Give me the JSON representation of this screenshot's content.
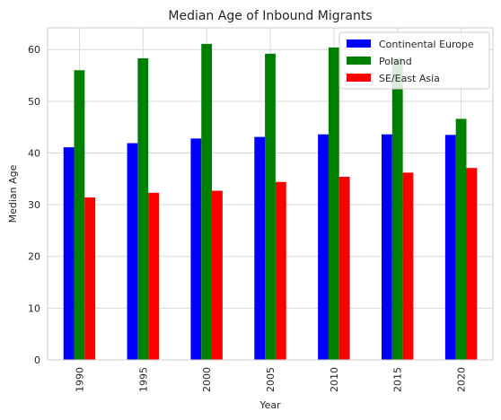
{
  "chart_data": {
    "type": "bar",
    "title": "Median Age of Inbound Migrants",
    "xlabel": "Year",
    "ylabel": "Median Age",
    "categories": [
      "1990",
      "1995",
      "2000",
      "2005",
      "2010",
      "2015",
      "2020"
    ],
    "series": [
      {
        "name": "Continental Europe",
        "color": "#0000ff",
        "values": [
          41.1,
          41.9,
          42.8,
          43.1,
          43.6,
          43.6,
          43.5
        ]
      },
      {
        "name": "Poland",
        "color": "#008000",
        "values": [
          56.0,
          58.3,
          61.1,
          59.2,
          60.4,
          58.3,
          46.6
        ]
      },
      {
        "name": "SE/East Asia",
        "color": "#ff0000",
        "values": [
          31.4,
          32.3,
          32.7,
          34.4,
          35.4,
          36.2,
          37.1
        ]
      }
    ],
    "ylim": [
      0,
      64.2
    ],
    "yticks": [
      0,
      10,
      20,
      30,
      40,
      50,
      60
    ],
    "grid": true,
    "legend_position": "top-right"
  }
}
